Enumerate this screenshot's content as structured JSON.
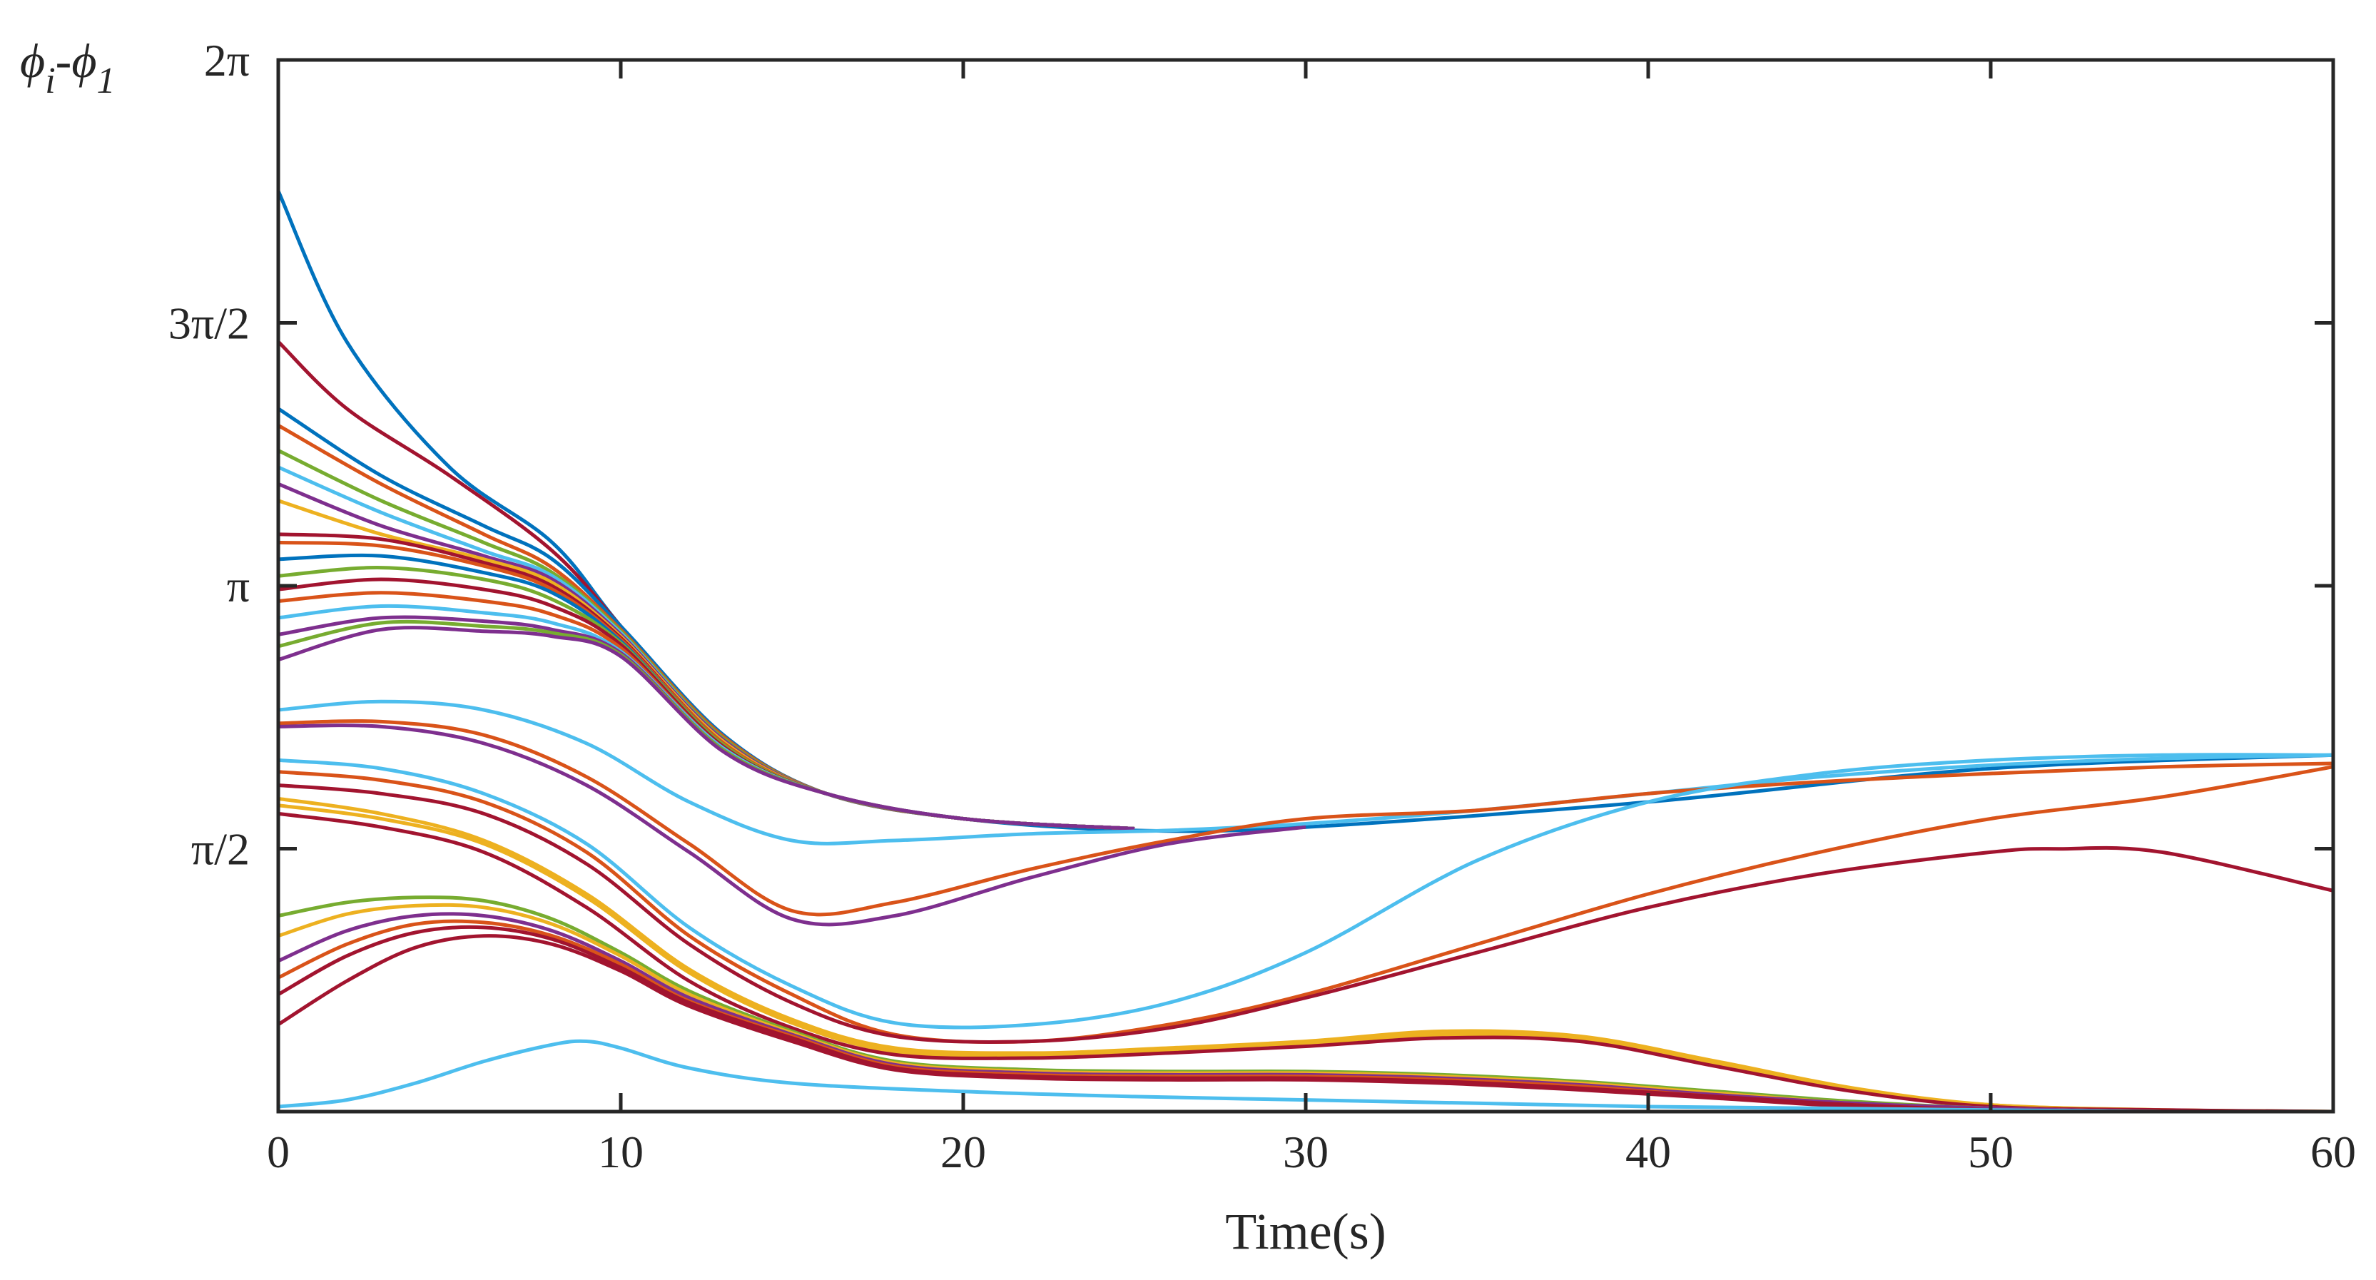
{
  "chart_data": {
    "type": "line",
    "title": "",
    "xlabel": "Time(s)",
    "ylabel": "ϕi-ϕ1",
    "ylabel_parts": {
      "phi_a": "ϕ",
      "sub_a": "i",
      "dash": "-",
      "phi_b": "ϕ",
      "sub_b": "1"
    },
    "xlim": [
      0,
      60
    ],
    "ylim": [
      0,
      6.2832
    ],
    "xticks": [
      {
        "value": 0,
        "label": "0"
      },
      {
        "value": 10,
        "label": "10"
      },
      {
        "value": 20,
        "label": "20"
      },
      {
        "value": 30,
        "label": "30"
      },
      {
        "value": 40,
        "label": "40"
      },
      {
        "value": 50,
        "label": "50"
      },
      {
        "value": 60,
        "label": "60"
      }
    ],
    "yticks": [
      {
        "value": 1.5708,
        "label": "π/2"
      },
      {
        "value": 3.1416,
        "label": "π"
      },
      {
        "value": 4.7124,
        "label": "3π/2"
      },
      {
        "value": 6.2832,
        "label": "2π"
      }
    ],
    "grid": false,
    "colors": {
      "blue": "#0072BD",
      "orange": "#D95319",
      "yellow": "#EDB120",
      "purple": "#7E2F8E",
      "green": "#77AC30",
      "cyan": "#4DBEEE",
      "red": "#A2142F",
      "axis": "#262626"
    },
    "series": [
      {
        "name": "top-blue",
        "color": "blue",
        "t": [
          0,
          2,
          5,
          8,
          10,
          13,
          16,
          20,
          25,
          30,
          40,
          50,
          60
        ],
        "values": [
          5.5,
          4.6,
          3.85,
          3.4,
          2.9,
          2.2,
          1.9,
          1.75,
          1.68,
          1.7,
          1.85,
          2.05,
          2.13
        ]
      },
      {
        "name": "top-red",
        "color": "red",
        "t": [
          0,
          2,
          5,
          8,
          10,
          13,
          16,
          20,
          25
        ],
        "values": [
          4.6,
          4.2,
          3.8,
          3.35,
          2.9,
          2.2,
          1.9,
          1.75,
          1.69
        ]
      },
      {
        "name": "bundle-1",
        "color": "blue",
        "t": [
          0,
          3,
          6,
          8,
          10,
          13,
          16,
          20,
          25
        ],
        "values": [
          4.2,
          3.8,
          3.5,
          3.3,
          2.9,
          2.25,
          1.9,
          1.75,
          1.69
        ]
      },
      {
        "name": "bundle-2",
        "color": "orange",
        "t": [
          0,
          3,
          6,
          8,
          10,
          13,
          16,
          20,
          25
        ],
        "values": [
          4.1,
          3.75,
          3.45,
          3.25,
          2.88,
          2.24,
          1.9,
          1.75,
          1.69
        ]
      },
      {
        "name": "bundle-3",
        "color": "green",
        "t": [
          0,
          3,
          6,
          8,
          10,
          13,
          16,
          20,
          25
        ],
        "values": [
          3.95,
          3.65,
          3.4,
          3.22,
          2.87,
          2.23,
          1.9,
          1.75,
          1.69
        ]
      },
      {
        "name": "bundle-4",
        "color": "cyan",
        "t": [
          0,
          3,
          6,
          8,
          10,
          13,
          16,
          20,
          25
        ],
        "values": [
          3.85,
          3.58,
          3.35,
          3.2,
          2.86,
          2.22,
          1.9,
          1.75,
          1.69
        ]
      },
      {
        "name": "bundle-5",
        "color": "purple",
        "t": [
          0,
          3,
          6,
          8,
          10,
          13,
          16,
          20,
          25
        ],
        "values": [
          3.75,
          3.5,
          3.32,
          3.18,
          2.85,
          2.22,
          1.9,
          1.75,
          1.69
        ]
      },
      {
        "name": "bundle-6",
        "color": "yellow",
        "t": [
          0,
          3,
          6,
          8,
          10,
          13,
          16,
          20,
          25
        ],
        "values": [
          3.65,
          3.45,
          3.3,
          3.16,
          2.84,
          2.21,
          1.9,
          1.75,
          1.69
        ]
      },
      {
        "name": "bundle-7",
        "color": "red",
        "t": [
          0,
          3,
          6,
          8,
          10,
          13,
          16,
          20,
          25
        ],
        "values": [
          3.45,
          3.42,
          3.28,
          3.14,
          2.83,
          2.2,
          1.9,
          1.75,
          1.69
        ]
      },
      {
        "name": "bundle-8",
        "color": "orange",
        "t": [
          0,
          3,
          6,
          8,
          10,
          13,
          16,
          20,
          25
        ],
        "values": [
          3.4,
          3.38,
          3.26,
          3.12,
          2.82,
          2.2,
          1.9,
          1.75,
          1.69
        ]
      },
      {
        "name": "bundle-9",
        "color": "blue",
        "t": [
          0,
          3,
          6,
          8,
          10,
          13,
          16,
          20,
          25
        ],
        "values": [
          3.3,
          3.32,
          3.22,
          3.1,
          2.81,
          2.19,
          1.9,
          1.75,
          1.69
        ]
      },
      {
        "name": "bundle-10",
        "color": "green",
        "t": [
          0,
          3,
          6,
          8,
          10,
          13,
          16,
          20,
          25
        ],
        "values": [
          3.2,
          3.25,
          3.18,
          3.06,
          2.8,
          2.19,
          1.9,
          1.75,
          1.69
        ]
      },
      {
        "name": "bundle-11",
        "color": "red",
        "t": [
          0,
          3,
          6,
          8,
          10,
          13,
          16,
          20,
          25
        ],
        "values": [
          3.12,
          3.18,
          3.12,
          3.02,
          2.79,
          2.18,
          1.9,
          1.75,
          1.69
        ]
      },
      {
        "name": "bundle-12",
        "color": "orange",
        "t": [
          0,
          3,
          6,
          8,
          10,
          13,
          16,
          20,
          25
        ],
        "values": [
          3.05,
          3.1,
          3.05,
          2.97,
          2.77,
          2.17,
          1.9,
          1.75,
          1.69
        ]
      },
      {
        "name": "bundle-13",
        "color": "cyan",
        "t": [
          0,
          3,
          6,
          8,
          10,
          13,
          16,
          20,
          25
        ],
        "values": [
          2.95,
          3.02,
          2.98,
          2.92,
          2.75,
          2.17,
          1.9,
          1.75,
          1.69
        ]
      },
      {
        "name": "bundle-14",
        "color": "purple",
        "t": [
          0,
          3,
          6,
          8,
          10,
          13,
          16,
          20,
          25
        ],
        "values": [
          2.85,
          2.95,
          2.93,
          2.88,
          2.74,
          2.16,
          1.9,
          1.75,
          1.69
        ]
      },
      {
        "name": "bundle-15",
        "color": "green",
        "t": [
          0,
          3,
          6,
          8,
          10,
          13,
          16,
          20,
          25
        ],
        "values": [
          2.78,
          2.92,
          2.9,
          2.86,
          2.73,
          2.16,
          1.9,
          1.75,
          1.69
        ]
      },
      {
        "name": "bundle-16",
        "color": "purple",
        "t": [
          0,
          3,
          6,
          8,
          10,
          13,
          16,
          20,
          25
        ],
        "values": [
          2.7,
          2.88,
          2.87,
          2.84,
          2.72,
          2.15,
          1.9,
          1.75,
          1.69
        ]
      },
      {
        "name": "mid-cyan",
        "color": "cyan",
        "t": [
          0,
          3,
          6,
          9,
          12,
          15,
          18,
          22,
          26,
          30,
          35,
          40,
          45,
          50,
          55,
          60
        ],
        "values": [
          2.4,
          2.45,
          2.4,
          2.2,
          1.85,
          1.62,
          1.62,
          1.66,
          1.68,
          1.72,
          1.8,
          1.9,
          2.0,
          2.07,
          2.11,
          2.13
        ]
      },
      {
        "name": "mid-orange",
        "color": "orange",
        "t": [
          0,
          3,
          6,
          9,
          12,
          15,
          18,
          22,
          26,
          30,
          35,
          40,
          45,
          50,
          55,
          60
        ],
        "values": [
          2.32,
          2.33,
          2.25,
          2.0,
          1.6,
          1.2,
          1.25,
          1.45,
          1.62,
          1.75,
          1.8,
          1.9,
          1.97,
          2.02,
          2.06,
          2.08
        ]
      },
      {
        "name": "mid-purple",
        "color": "purple",
        "t": [
          0,
          3,
          6,
          9,
          12,
          15,
          18,
          22,
          26,
          30
        ],
        "values": [
          2.3,
          2.3,
          2.2,
          1.95,
          1.55,
          1.15,
          1.17,
          1.4,
          1.6,
          1.7
        ]
      },
      {
        "name": "lower-cyan",
        "color": "cyan",
        "t": [
          0,
          3,
          6,
          9,
          12,
          15,
          18,
          22,
          26,
          30,
          35,
          40,
          45,
          50,
          55,
          60
        ],
        "values": [
          2.1,
          2.05,
          1.9,
          1.6,
          1.1,
          0.75,
          0.53,
          0.52,
          0.65,
          0.95,
          1.5,
          1.85,
          2.02,
          2.1,
          2.13,
          2.13
        ]
      },
      {
        "name": "lower-orange",
        "color": "orange",
        "t": [
          0,
          3,
          6,
          9,
          12,
          15,
          18,
          22,
          26,
          30,
          35,
          40,
          45,
          50,
          55,
          60
        ],
        "values": [
          2.03,
          1.98,
          1.85,
          1.55,
          1.05,
          0.7,
          0.46,
          0.42,
          0.52,
          0.7,
          1.0,
          1.3,
          1.55,
          1.75,
          1.88,
          2.06
        ]
      },
      {
        "name": "lower-red",
        "color": "red",
        "t": [
          0,
          3,
          6,
          9,
          12,
          15,
          18,
          22,
          26,
          30,
          35,
          40,
          45,
          50,
          52,
          55,
          60
        ],
        "values": [
          1.95,
          1.9,
          1.78,
          1.48,
          1.0,
          0.65,
          0.45,
          0.42,
          0.5,
          0.68,
          0.95,
          1.22,
          1.42,
          1.55,
          1.57,
          1.55,
          1.32
        ]
      },
      {
        "name": "yellow-a",
        "color": "yellow",
        "t": [
          0,
          3,
          6,
          9,
          12,
          15,
          18,
          22,
          26,
          30,
          34,
          38,
          42,
          46,
          50,
          55,
          60
        ],
        "values": [
          1.87,
          1.78,
          1.62,
          1.3,
          0.85,
          0.55,
          0.38,
          0.35,
          0.38,
          0.42,
          0.48,
          0.45,
          0.3,
          0.14,
          0.04,
          0.01,
          0.0
        ]
      },
      {
        "name": "yellow-b",
        "color": "yellow",
        "t": [
          0,
          3,
          6,
          9,
          12,
          15,
          18,
          22,
          26,
          30,
          34,
          38,
          42,
          46,
          50,
          55,
          60
        ],
        "values": [
          1.83,
          1.75,
          1.6,
          1.28,
          0.83,
          0.53,
          0.36,
          0.34,
          0.37,
          0.41,
          0.46,
          0.44,
          0.29,
          0.13,
          0.04,
          0.01,
          0.0
        ]
      },
      {
        "name": "red-c",
        "color": "red",
        "t": [
          0,
          3,
          6,
          9,
          12,
          15,
          18,
          22,
          26,
          30,
          34,
          38,
          42,
          46,
          50,
          55,
          60
        ],
        "values": [
          1.78,
          1.7,
          1.55,
          1.22,
          0.78,
          0.5,
          0.34,
          0.32,
          0.35,
          0.39,
          0.44,
          0.42,
          0.27,
          0.12,
          0.03,
          0.01,
          0.0
        ]
      },
      {
        "name": "green-hump",
        "color": "green",
        "t": [
          0,
          2,
          4,
          6,
          8,
          10,
          12,
          15,
          18,
          22,
          26,
          30,
          34,
          38,
          42,
          46,
          50,
          55,
          60
        ],
        "values": [
          1.17,
          1.25,
          1.28,
          1.26,
          1.15,
          0.95,
          0.72,
          0.48,
          0.3,
          0.25,
          0.24,
          0.24,
          0.22,
          0.18,
          0.12,
          0.06,
          0.02,
          0.0,
          0.0
        ]
      },
      {
        "name": "yellow-hump",
        "color": "yellow",
        "t": [
          0,
          2,
          4,
          6,
          8,
          10,
          12,
          15,
          18,
          22,
          26,
          30,
          34,
          38,
          42,
          46,
          50,
          55,
          60
        ],
        "values": [
          1.05,
          1.18,
          1.23,
          1.22,
          1.12,
          0.93,
          0.7,
          0.47,
          0.29,
          0.24,
          0.23,
          0.23,
          0.21,
          0.17,
          0.11,
          0.05,
          0.02,
          0.0,
          0.0
        ]
      },
      {
        "name": "purple-hump",
        "color": "purple",
        "t": [
          0,
          2,
          4,
          6,
          8,
          10,
          12,
          15,
          18,
          22,
          26,
          30,
          34,
          38,
          42,
          46,
          50,
          55,
          60
        ],
        "values": [
          0.9,
          1.08,
          1.17,
          1.17,
          1.08,
          0.9,
          0.68,
          0.46,
          0.28,
          0.23,
          0.22,
          0.22,
          0.2,
          0.16,
          0.1,
          0.05,
          0.02,
          0.0,
          0.0
        ]
      },
      {
        "name": "orange-hump",
        "color": "orange",
        "t": [
          0,
          2,
          4,
          6,
          8,
          10,
          12,
          15,
          18,
          22,
          26,
          30,
          34,
          38,
          42,
          46,
          50,
          55,
          60
        ],
        "values": [
          0.8,
          1.0,
          1.12,
          1.13,
          1.05,
          0.88,
          0.66,
          0.45,
          0.27,
          0.22,
          0.21,
          0.21,
          0.19,
          0.15,
          0.09,
          0.04,
          0.01,
          0.0,
          0.0
        ]
      },
      {
        "name": "red-hump-a",
        "color": "red",
        "t": [
          0,
          2,
          4,
          6,
          8,
          10,
          12,
          15,
          18,
          22,
          26,
          30,
          34,
          38,
          42,
          46,
          50,
          55,
          60
        ],
        "values": [
          0.7,
          0.93,
          1.07,
          1.1,
          1.03,
          0.86,
          0.65,
          0.44,
          0.26,
          0.21,
          0.2,
          0.2,
          0.18,
          0.14,
          0.09,
          0.04,
          0.01,
          0.0,
          0.0
        ]
      },
      {
        "name": "red-hump-b",
        "color": "red",
        "t": [
          0,
          2,
          4,
          6,
          8,
          10,
          12,
          15,
          18,
          22,
          26,
          30,
          34,
          38,
          42,
          46,
          50,
          55,
          60
        ],
        "values": [
          0.52,
          0.78,
          0.98,
          1.05,
          1.0,
          0.84,
          0.63,
          0.42,
          0.25,
          0.2,
          0.19,
          0.19,
          0.17,
          0.13,
          0.08,
          0.03,
          0.01,
          0.0,
          0.0
        ]
      },
      {
        "name": "low-cyan",
        "color": "cyan",
        "t": [
          0,
          2,
          4,
          6,
          8,
          9,
          10,
          12,
          15,
          20,
          25,
          30,
          35,
          40,
          45,
          50,
          55,
          60
        ],
        "values": [
          0.03,
          0.07,
          0.17,
          0.3,
          0.4,
          0.42,
          0.38,
          0.26,
          0.17,
          0.12,
          0.09,
          0.07,
          0.05,
          0.03,
          0.02,
          0.01,
          0.0,
          0.0
        ]
      },
      {
        "name": "zero-blue",
        "color": "blue",
        "t": [
          0,
          60
        ],
        "values": [
          0.0,
          0.0
        ]
      }
    ]
  }
}
